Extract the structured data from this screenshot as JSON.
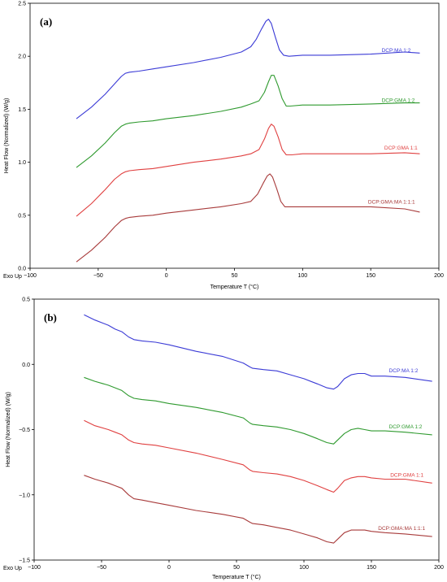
{
  "chart_data": [
    {
      "type": "line",
      "panel_label": "(a)",
      "xlabel": "Temperature T (°C)",
      "ylabel": "Heat Flow (Normalized) (W/g)",
      "corner_label": "Exo Up",
      "xlim": [
        -100,
        200
      ],
      "ylim": [
        0.0,
        2.5
      ],
      "xticks": [
        -100,
        -50,
        0,
        50,
        100,
        150,
        200
      ],
      "yticks": [
        0.0,
        0.5,
        1.0,
        1.5,
        2.0,
        2.5
      ],
      "xtick_labels": [
        "−100",
        "−50",
        "0",
        "50",
        "100",
        "150",
        "200"
      ],
      "ytick_labels": [
        "0.0",
        "0.5",
        "1.0",
        "1.5",
        "2.0",
        "2.5"
      ],
      "grid": false,
      "series": [
        {
          "name": "DCP:MA 1:2",
          "color": "#3b3bd6",
          "label_at": [
            158,
            2.04
          ],
          "x": [
            -66,
            -55,
            -45,
            -38,
            -33,
            -30,
            -27,
            -20,
            -10,
            0,
            20,
            40,
            55,
            62,
            66,
            70,
            73,
            75,
            77,
            80,
            83,
            86,
            90,
            100,
            120,
            150,
            175,
            186
          ],
          "y": [
            1.41,
            1.52,
            1.64,
            1.74,
            1.81,
            1.84,
            1.85,
            1.86,
            1.88,
            1.9,
            1.94,
            1.99,
            2.04,
            2.09,
            2.16,
            2.26,
            2.33,
            2.35,
            2.31,
            2.18,
            2.06,
            2.01,
            2.0,
            2.01,
            2.01,
            2.02,
            2.04,
            2.03
          ]
        },
        {
          "name": "DCP:GMA 1:2",
          "color": "#2f9a2f",
          "label_at": [
            158,
            1.57
          ],
          "x": [
            -66,
            -55,
            -45,
            -38,
            -33,
            -30,
            -27,
            -20,
            -10,
            0,
            20,
            40,
            55,
            62,
            68,
            72,
            75,
            77,
            79,
            82,
            85,
            88,
            91,
            100,
            120,
            150,
            175,
            186
          ],
          "y": [
            0.95,
            1.06,
            1.18,
            1.28,
            1.34,
            1.36,
            1.37,
            1.38,
            1.39,
            1.41,
            1.44,
            1.48,
            1.52,
            1.55,
            1.58,
            1.66,
            1.76,
            1.82,
            1.82,
            1.72,
            1.6,
            1.53,
            1.53,
            1.54,
            1.54,
            1.55,
            1.56,
            1.56
          ]
        },
        {
          "name": "DCP:GMA 1:1",
          "color": "#e04040",
          "label_at": [
            160,
            1.12
          ],
          "x": [
            -66,
            -55,
            -45,
            -38,
            -33,
            -30,
            -27,
            -20,
            -10,
            0,
            20,
            40,
            55,
            62,
            68,
            72,
            75,
            77,
            79,
            82,
            85,
            88,
            92,
            100,
            120,
            150,
            175,
            186
          ],
          "y": [
            0.49,
            0.61,
            0.74,
            0.84,
            0.89,
            0.91,
            0.92,
            0.93,
            0.94,
            0.96,
            1.0,
            1.03,
            1.06,
            1.08,
            1.12,
            1.22,
            1.32,
            1.36,
            1.34,
            1.24,
            1.12,
            1.07,
            1.07,
            1.08,
            1.08,
            1.08,
            1.09,
            1.08
          ]
        },
        {
          "name": "DCP:GMA:MA 1:1:1",
          "color": "#a83b3b",
          "label_at": [
            148,
            0.61
          ],
          "x": [
            -66,
            -55,
            -45,
            -38,
            -33,
            -30,
            -27,
            -20,
            -10,
            0,
            20,
            40,
            55,
            62,
            67,
            71,
            74,
            76,
            78,
            81,
            84,
            87,
            90,
            100,
            120,
            150,
            175,
            186
          ],
          "y": [
            0.06,
            0.17,
            0.29,
            0.39,
            0.45,
            0.47,
            0.48,
            0.49,
            0.5,
            0.52,
            0.55,
            0.58,
            0.61,
            0.63,
            0.7,
            0.8,
            0.87,
            0.89,
            0.86,
            0.75,
            0.63,
            0.58,
            0.58,
            0.58,
            0.58,
            0.58,
            0.56,
            0.53
          ]
        }
      ]
    },
    {
      "type": "line",
      "panel_label": "(b)",
      "xlabel": "Temperature T (°C)",
      "ylabel": "Heat Flow (Normalized) (W/g)",
      "corner_label": "Exo Up",
      "xlim": [
        -100,
        200
      ],
      "ylim": [
        -1.5,
        0.5
      ],
      "xticks": [
        -100,
        -50,
        0,
        50,
        100,
        150,
        200
      ],
      "yticks": [
        -1.5,
        -1.0,
        -0.5,
        0.0,
        0.5
      ],
      "xtick_labels": [
        "−100",
        "−50",
        "0",
        "50",
        "100",
        "150",
        "200"
      ],
      "ytick_labels": [
        "−1.5",
        "−1.0",
        "−0.5",
        "0.0",
        "0.5"
      ],
      "grid": false,
      "series": [
        {
          "name": "DCP:MA 1:2",
          "color": "#3b3bd6",
          "label_at": [
            163,
            -0.06
          ],
          "x": [
            -63,
            -55,
            -45,
            -40,
            -35,
            -30,
            -26,
            -20,
            -10,
            0,
            20,
            40,
            55,
            60,
            62,
            70,
            80,
            90,
            100,
            110,
            117,
            122,
            125,
            130,
            135,
            140,
            145,
            150,
            160,
            175,
            195
          ],
          "y": [
            0.38,
            0.34,
            0.3,
            0.27,
            0.25,
            0.21,
            0.19,
            0.18,
            0.17,
            0.15,
            0.1,
            0.06,
            0.01,
            -0.02,
            -0.03,
            -0.04,
            -0.05,
            -0.08,
            -0.11,
            -0.15,
            -0.18,
            -0.19,
            -0.17,
            -0.11,
            -0.08,
            -0.07,
            -0.07,
            -0.09,
            -0.09,
            -0.1,
            -0.13
          ]
        },
        {
          "name": "DCP:GMA 1:2",
          "color": "#2f9a2f",
          "label_at": [
            163,
            -0.49
          ],
          "x": [
            -63,
            -55,
            -45,
            -40,
            -35,
            -30,
            -26,
            -20,
            -10,
            0,
            20,
            40,
            55,
            60,
            62,
            70,
            80,
            90,
            100,
            110,
            117,
            122,
            125,
            130,
            135,
            140,
            145,
            150,
            160,
            175,
            195
          ],
          "y": [
            -0.1,
            -0.13,
            -0.16,
            -0.18,
            -0.2,
            -0.24,
            -0.26,
            -0.27,
            -0.28,
            -0.3,
            -0.33,
            -0.37,
            -0.41,
            -0.45,
            -0.46,
            -0.47,
            -0.48,
            -0.5,
            -0.53,
            -0.57,
            -0.6,
            -0.61,
            -0.58,
            -0.53,
            -0.5,
            -0.49,
            -0.5,
            -0.51,
            -0.51,
            -0.52,
            -0.54
          ]
        },
        {
          "name": "DCP:GMA 1:1",
          "color": "#e04040",
          "label_at": [
            164,
            -0.86
          ],
          "x": [
            -63,
            -55,
            -45,
            -40,
            -35,
            -30,
            -26,
            -20,
            -10,
            0,
            20,
            40,
            55,
            60,
            62,
            70,
            80,
            90,
            100,
            110,
            117,
            122,
            125,
            130,
            135,
            140,
            145,
            150,
            160,
            175,
            195
          ],
          "y": [
            -0.43,
            -0.47,
            -0.5,
            -0.52,
            -0.54,
            -0.58,
            -0.6,
            -0.61,
            -0.62,
            -0.64,
            -0.68,
            -0.73,
            -0.77,
            -0.81,
            -0.82,
            -0.83,
            -0.84,
            -0.86,
            -0.89,
            -0.93,
            -0.96,
            -0.98,
            -0.95,
            -0.89,
            -0.87,
            -0.86,
            -0.86,
            -0.87,
            -0.88,
            -0.88,
            -0.91
          ]
        },
        {
          "name": "DCP:GMA:MA 1:1:1",
          "color": "#a83b3b",
          "label_at": [
            155,
            -1.27
          ],
          "x": [
            -63,
            -55,
            -45,
            -40,
            -35,
            -30,
            -26,
            -20,
            -10,
            0,
            20,
            40,
            55,
            60,
            62,
            70,
            80,
            90,
            100,
            110,
            117,
            122,
            125,
            130,
            135,
            140,
            145,
            150,
            160,
            175,
            195
          ],
          "y": [
            -0.85,
            -0.88,
            -0.91,
            -0.93,
            -0.95,
            -1.0,
            -1.03,
            -1.04,
            -1.06,
            -1.08,
            -1.12,
            -1.15,
            -1.18,
            -1.21,
            -1.22,
            -1.23,
            -1.25,
            -1.27,
            -1.3,
            -1.33,
            -1.36,
            -1.37,
            -1.34,
            -1.29,
            -1.27,
            -1.27,
            -1.27,
            -1.28,
            -1.29,
            -1.3,
            -1.32
          ]
        }
      ]
    }
  ]
}
